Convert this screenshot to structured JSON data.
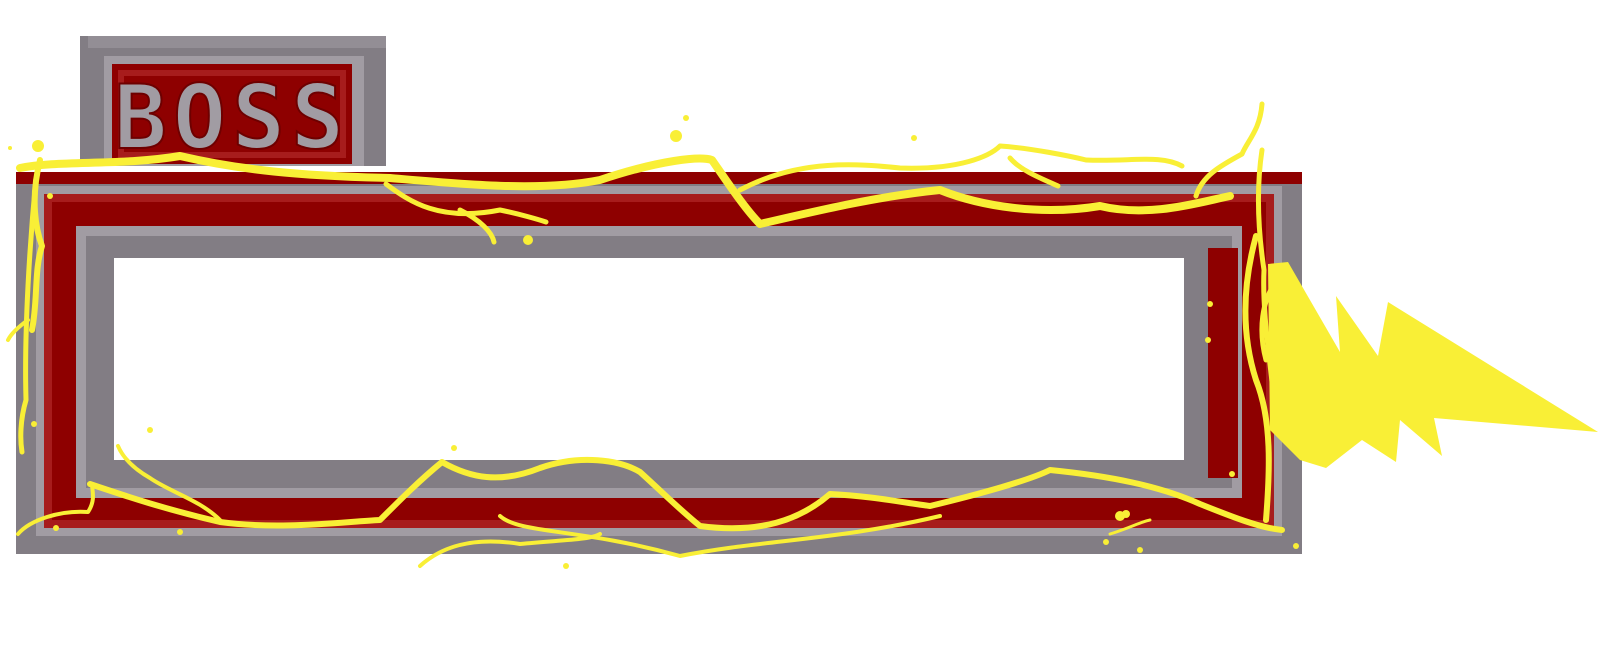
{
  "boss_bar": {
    "label": "BOSS",
    "health_fill": 0,
    "colors": {
      "frame_gray": "#827d84",
      "frame_light": "#a19ca3",
      "frame_red": "#8e0000",
      "frame_red_light": "#a71c1c",
      "lightning": "#f9ef36",
      "interior": "#ffffff"
    },
    "icons": {
      "label_plate": "boss-label-plate",
      "lightning": "lightning-bolt-icon"
    }
  }
}
